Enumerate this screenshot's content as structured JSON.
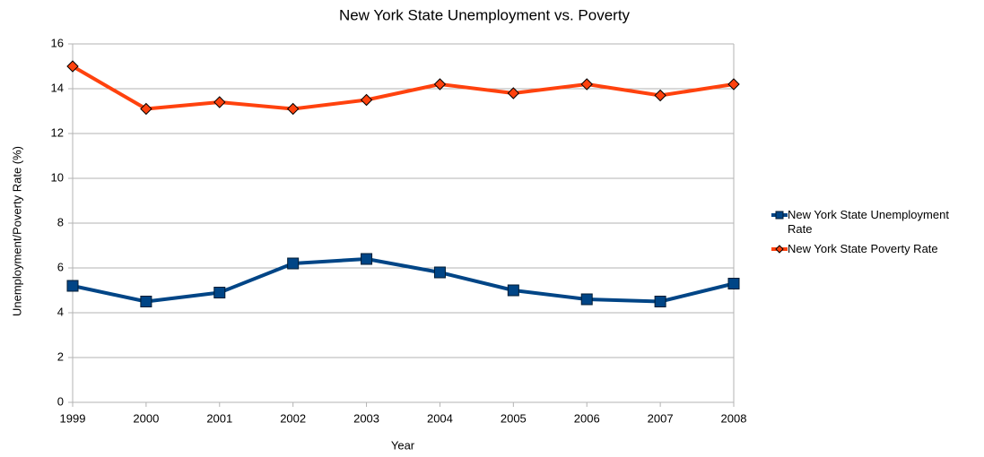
{
  "chart_data": {
    "type": "line",
    "title": "New York State Unemployment vs. Poverty",
    "x_label": "Year",
    "y_label": "Unemployment/Poverty Rate (%)",
    "x": [
      1999,
      2000,
      2001,
      2002,
      2003,
      2004,
      2005,
      2006,
      2007,
      2008
    ],
    "xlim": [
      1999,
      2008
    ],
    "series": [
      {
        "name": "New York State Unemployment Rate",
        "color": "#004586",
        "marker": "square",
        "values": [
          5.2,
          4.5,
          4.9,
          6.2,
          6.4,
          5.8,
          5.0,
          4.6,
          4.5,
          5.3
        ]
      },
      {
        "name": "New York State Poverty Rate",
        "color": "#ff420e",
        "marker": "diamond",
        "values": [
          15.0,
          13.1,
          13.4,
          13.1,
          13.5,
          14.2,
          13.8,
          14.2,
          13.7,
          14.2
        ]
      }
    ],
    "ylim": [
      0,
      16
    ],
    "yticks": [
      0,
      2,
      4,
      6,
      8,
      10,
      12,
      14,
      16
    ],
    "grid": true,
    "legend": "right"
  }
}
